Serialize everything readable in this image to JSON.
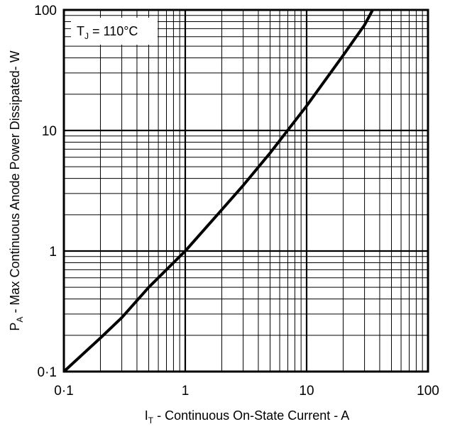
{
  "chart_data": {
    "type": "line",
    "x_scale": "log",
    "y_scale": "log",
    "xlim": [
      0.1,
      100
    ],
    "ylim": [
      0.1,
      100
    ],
    "grid": true,
    "x_ticks": [
      "0·1",
      "1",
      "10",
      "100"
    ],
    "y_ticks": [
      "0·1",
      "1",
      "10",
      "100"
    ],
    "xlabel": {
      "main": "I",
      "sub": "T",
      "rest": " - Continuous On-State Current - A"
    },
    "ylabel": {
      "main": "P",
      "sub": "A",
      "rest": " - Max Continuous Anode Power Dissipated- W"
    },
    "annotation": {
      "main": "T",
      "sub": "J",
      "rest": " = 110°C"
    },
    "series": [
      {
        "x": [
          0.1,
          0.2,
          0.3,
          0.5,
          1,
          2,
          3,
          5,
          10,
          20,
          30,
          35
        ],
        "y": [
          0.1,
          0.19,
          0.28,
          0.5,
          1,
          2.2,
          3.5,
          6.5,
          16,
          42,
          75,
          100
        ]
      }
    ]
  }
}
